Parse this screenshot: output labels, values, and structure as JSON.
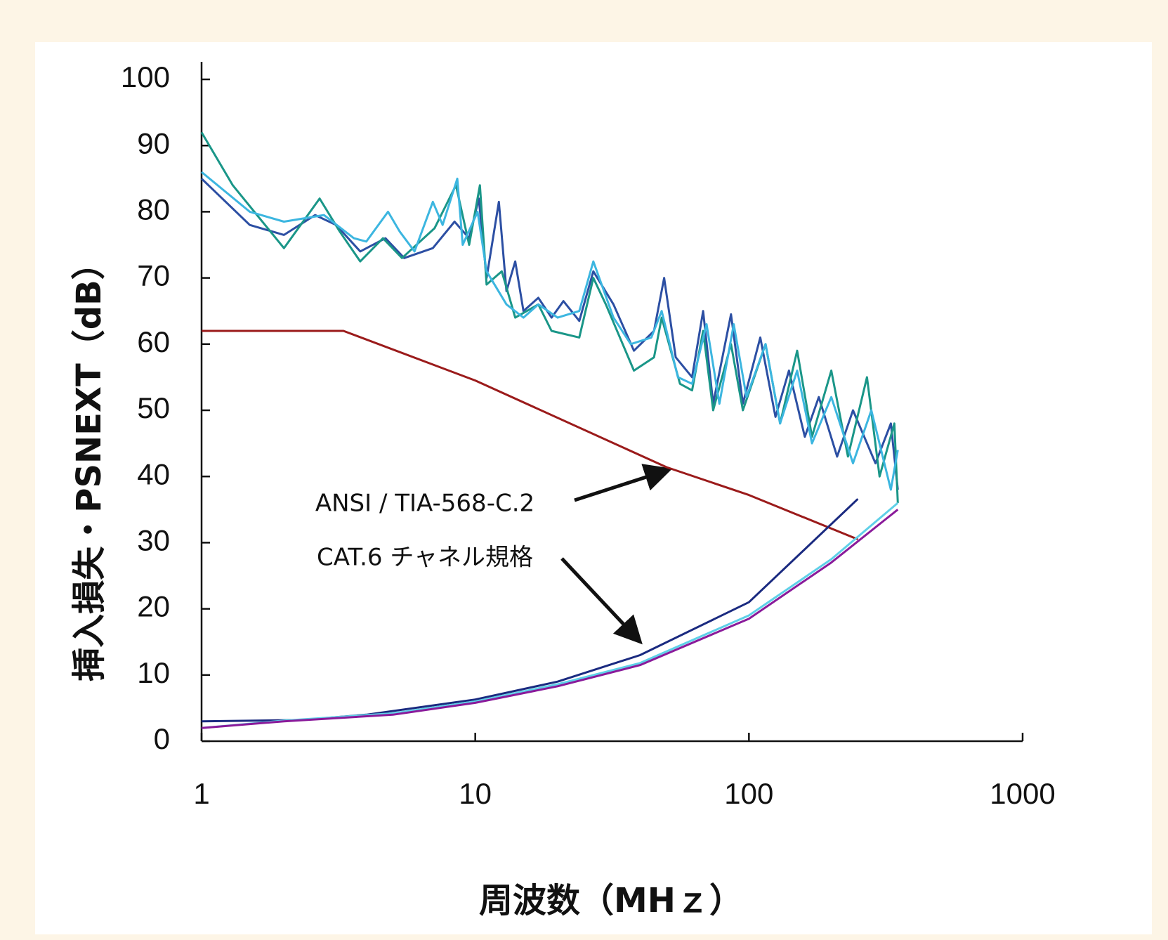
{
  "chart_data": {
    "type": "line",
    "xlabel": "周波数（MHｚ）",
    "ylabel": "挿入損失・PSNEXT（dB）",
    "annotations": [
      "ANSI / TIA-568-C.2",
      "CAT.6 チャネル規格"
    ],
    "xscale": "log",
    "xlim": [
      1,
      1000
    ],
    "xticks": [
      1,
      10,
      100,
      1000
    ],
    "ylim": [
      0,
      100
    ],
    "yticks": [
      0,
      10,
      20,
      30,
      40,
      50,
      60,
      70,
      80,
      90,
      100
    ],
    "series": [
      {
        "color": "#2c4fa3",
        "x": [
          1,
          1.5,
          2,
          2.6,
          3.1,
          3.8,
          4.7,
          5.5,
          7,
          8.4,
          9.5,
          10.3,
          11,
          12.2,
          13,
          14,
          15,
          17,
          19,
          21,
          24,
          27,
          32,
          38,
          45,
          49,
          54,
          62,
          68,
          74,
          86,
          95,
          110,
          125,
          140,
          160,
          180,
          210,
          240,
          290,
          330,
          350
        ],
        "values": [
          85,
          78,
          76.5,
          79.5,
          78,
          74,
          76,
          73,
          74.5,
          78.5,
          76,
          82,
          70,
          81.5,
          68,
          72.5,
          65,
          67,
          64,
          66.5,
          63.5,
          71,
          66,
          59,
          62,
          70,
          58,
          55,
          65,
          51,
          64.5,
          51,
          61,
          49,
          56,
          46,
          52,
          43,
          50,
          42,
          48,
          38
        ]
      },
      {
        "color": "#1a9688",
        "x": [
          1,
          1.3,
          2,
          2.7,
          3.2,
          3.8,
          4.6,
          5.4,
          7.1,
          8.5,
          9.5,
          10.4,
          11,
          12.5,
          14,
          17,
          19,
          24,
          27,
          30,
          38,
          45,
          48,
          56,
          62,
          68,
          74,
          86,
          95,
          115,
          130,
          150,
          170,
          200,
          230,
          270,
          300,
          340,
          350
        ],
        "values": [
          92,
          84,
          74.5,
          82,
          77,
          72.5,
          76,
          73,
          77.5,
          84,
          75,
          84,
          69,
          71,
          64,
          66,
          62,
          61,
          70,
          66,
          56,
          58,
          64,
          54,
          53,
          62,
          50,
          60,
          50,
          60,
          48,
          59,
          46,
          56,
          43,
          55,
          40,
          48,
          36
        ]
      },
      {
        "color": "#3cb6e0",
        "x": [
          1,
          1.5,
          2,
          2.8,
          3.6,
          4,
          4.8,
          5.3,
          6,
          7,
          7.6,
          8.6,
          9,
          10.2,
          11,
          13,
          15,
          17,
          20,
          24,
          27,
          32,
          37,
          44,
          48,
          55,
          62,
          70,
          78,
          88,
          98,
          115,
          130,
          150,
          170,
          200,
          240,
          280,
          330,
          350
        ],
        "values": [
          86,
          80,
          78.5,
          79.5,
          76,
          75.5,
          80,
          77,
          74,
          81.5,
          78,
          85,
          75,
          80,
          71,
          66,
          64,
          66,
          64,
          65,
          72.5,
          64,
          60,
          61,
          65,
          55,
          54,
          63,
          51,
          63,
          52,
          60,
          48,
          56,
          45,
          52,
          42,
          50,
          38,
          44
        ]
      },
      {
        "color": "#9b1b1b",
        "x": [
          1,
          2.3,
          3.3,
          10,
          50,
          100,
          250
        ],
        "values": [
          62,
          62,
          62,
          54.5,
          41.4,
          37.2,
          30.5
        ]
      },
      {
        "color": "#1a2a80",
        "x": [
          1,
          2.3,
          4,
          10,
          20,
          40,
          100,
          250
        ],
        "values": [
          3,
          3.2,
          4,
          6.3,
          9,
          13,
          21,
          36.6
        ]
      },
      {
        "color": "#5fd0e8",
        "x": [
          1,
          2,
          5,
          10,
          20,
          40,
          100,
          200,
          350
        ],
        "values": [
          2,
          3.1,
          4.2,
          6,
          8.6,
          11.8,
          19,
          27.5,
          36
        ]
      },
      {
        "color": "#8a1a9a",
        "x": [
          1,
          2,
          5,
          10,
          20,
          40,
          100,
          200,
          350
        ],
        "values": [
          2,
          3,
          4,
          5.8,
          8.3,
          11.5,
          18.5,
          27,
          35
        ]
      }
    ]
  }
}
